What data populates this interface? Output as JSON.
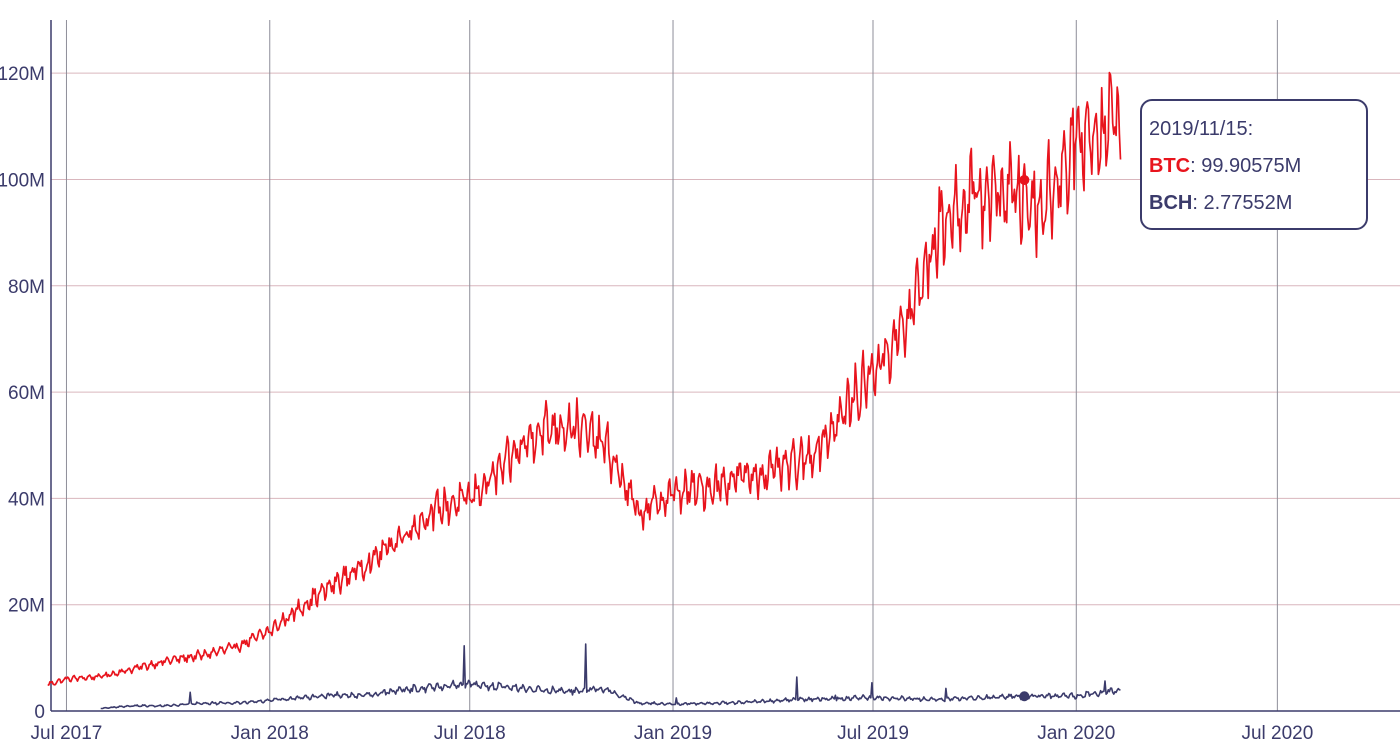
{
  "chart_data": {
    "type": "line",
    "title": "",
    "xlabel": "",
    "ylabel": "",
    "x_range": [
      "2017-06-17",
      "2020-10-20"
    ],
    "ylim": [
      0,
      130000000
    ],
    "y_ticks": [
      {
        "value": 0,
        "label": "0"
      },
      {
        "value": 20000000,
        "label": "20M"
      },
      {
        "value": 40000000,
        "label": "40M"
      },
      {
        "value": 60000000,
        "label": "60M"
      },
      {
        "value": 80000000,
        "label": "80M"
      },
      {
        "value": 100000000,
        "label": "100M"
      },
      {
        "value": 120000000,
        "label": "120M"
      }
    ],
    "x_ticks": [
      {
        "date": "2017-07-01",
        "label": "Jul 2017"
      },
      {
        "date": "2018-01-01",
        "label": "Jan 2018"
      },
      {
        "date": "2018-07-01",
        "label": "Jul 2018"
      },
      {
        "date": "2019-01-01",
        "label": "Jan 2019"
      },
      {
        "date": "2019-07-01",
        "label": "Jul 2019"
      },
      {
        "date": "2020-01-01",
        "label": "Jan 2020"
      },
      {
        "date": "2020-07-01",
        "label": "Jul 2020"
      }
    ],
    "grid": true,
    "legend": "none",
    "series": [
      {
        "name": "BTC",
        "color": "#e8141d",
        "points": [
          [
            "2017-06-14",
            5000000
          ],
          [
            "2017-07-01",
            6000000
          ],
          [
            "2017-08-01",
            6500000
          ],
          [
            "2017-09-01",
            8000000
          ],
          [
            "2017-10-01",
            9500000
          ],
          [
            "2017-11-01",
            10500000
          ],
          [
            "2017-12-01",
            12000000
          ],
          [
            "2018-01-01",
            15000000
          ],
          [
            "2018-02-01",
            20000000
          ],
          [
            "2018-03-01",
            24000000
          ],
          [
            "2018-04-01",
            28000000
          ],
          [
            "2018-05-01",
            33000000
          ],
          [
            "2018-06-01",
            38000000
          ],
          [
            "2018-07-01",
            40000000
          ],
          [
            "2018-08-01",
            46000000
          ],
          [
            "2018-09-01",
            53000000
          ],
          [
            "2018-10-01",
            54000000
          ],
          [
            "2018-11-01",
            50000000
          ],
          [
            "2018-12-01",
            37000000
          ],
          [
            "2019-01-01",
            41000000
          ],
          [
            "2019-02-01",
            42000000
          ],
          [
            "2019-03-01",
            44000000
          ],
          [
            "2019-04-01",
            45000000
          ],
          [
            "2019-05-01",
            47000000
          ],
          [
            "2019-06-01",
            55000000
          ],
          [
            "2019-07-01",
            64000000
          ],
          [
            "2019-08-01",
            73000000
          ],
          [
            "2019-09-01",
            92000000
          ],
          [
            "2019-10-01",
            97000000
          ],
          [
            "2019-11-01",
            98000000
          ],
          [
            "2019-12-01",
            95000000
          ],
          [
            "2020-01-01",
            107000000
          ],
          [
            "2020-02-10",
            112000000
          ]
        ]
      },
      {
        "name": "BCH",
        "color": "#3b3b6b",
        "points": [
          [
            "2017-08-01",
            500000
          ],
          [
            "2017-09-01",
            1000000
          ],
          [
            "2017-10-01",
            1000000
          ],
          [
            "2017-11-01",
            1500000
          ],
          [
            "2017-12-01",
            1500000
          ],
          [
            "2018-01-01",
            2000000
          ],
          [
            "2018-02-01",
            2500000
          ],
          [
            "2018-03-01",
            3000000
          ],
          [
            "2018-04-01",
            3000000
          ],
          [
            "2018-05-01",
            4000000
          ],
          [
            "2018-06-01",
            4500000
          ],
          [
            "2018-07-01",
            5000000
          ],
          [
            "2018-08-01",
            4500000
          ],
          [
            "2018-09-01",
            4000000
          ],
          [
            "2018-10-01",
            3800000
          ],
          [
            "2018-11-01",
            4200000
          ],
          [
            "2018-11-25",
            2000000
          ],
          [
            "2018-12-01",
            1500000
          ],
          [
            "2019-01-01",
            1300000
          ],
          [
            "2019-03-01",
            1600000
          ],
          [
            "2019-05-01",
            2200000
          ],
          [
            "2019-07-01",
            2500000
          ],
          [
            "2019-09-01",
            2200000
          ],
          [
            "2019-11-01",
            2700000
          ],
          [
            "2020-01-01",
            2800000
          ],
          [
            "2020-02-10",
            4000000
          ]
        ]
      }
    ],
    "tooltip": {
      "date": "2019/11/15:",
      "x": "2019-11-15",
      "entries": [
        {
          "series": "BTC",
          "label": "BTC",
          "value": 99905750,
          "value_text": ": 99.90575M",
          "color": "#e8141d"
        },
        {
          "series": "BCH",
          "label": "BCH",
          "value": 2775520,
          "value_text": ": 2.77552M",
          "color": "#3b3b6b"
        }
      ]
    }
  }
}
